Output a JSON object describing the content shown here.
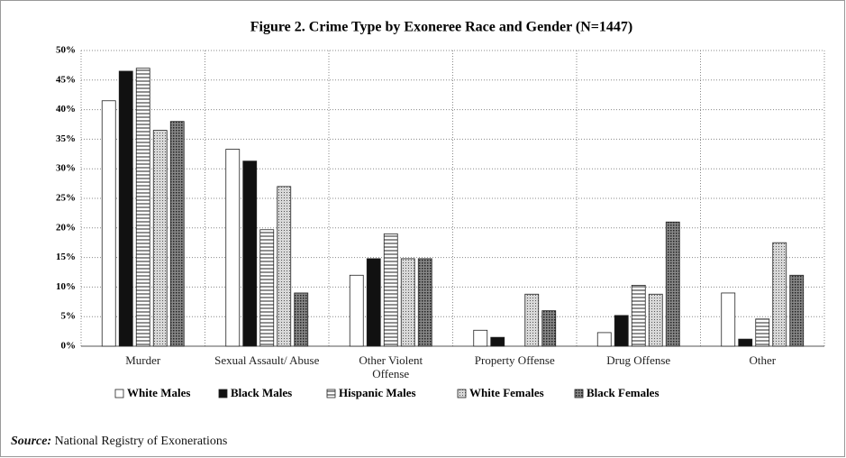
{
  "chart_data": {
    "type": "bar",
    "title": "Figure 2. Crime Type by Exoneree Race and Gender (N=1447)",
    "categories": [
      "Murder",
      "Sexual Assault/ Abuse",
      "Other Violent Offense",
      "Property Offense",
      "Drug Offense",
      "Other"
    ],
    "series": [
      {
        "name": "White Males",
        "color": "#ffffff",
        "pattern": "solid",
        "values": [
          41.5,
          33.3,
          12,
          2.7,
          2.3,
          9
        ]
      },
      {
        "name": "Black Males",
        "color": "#111111",
        "pattern": "solid",
        "values": [
          46.5,
          31.3,
          14.8,
          1.5,
          5.2,
          1.2
        ]
      },
      {
        "name": "Hispanic Males",
        "color": "#ffffff",
        "pattern": "horizontal",
        "values": [
          47,
          19.7,
          19,
          0,
          10.3,
          4.6
        ]
      },
      {
        "name": "White Females",
        "color": "#bdbdbd",
        "pattern": "dotted",
        "values": [
          36.5,
          27,
          14.8,
          8.8,
          8.8,
          17.5
        ]
      },
      {
        "name": "Black Females",
        "color": "#6a6a6a",
        "pattern": "dotted",
        "values": [
          38,
          9,
          14.8,
          6,
          21,
          12
        ]
      }
    ],
    "ylim": [
      0,
      50
    ],
    "yticks": [
      {
        "value": 0,
        "label": "0%"
      },
      {
        "value": 5,
        "label": "5%"
      },
      {
        "value": 10,
        "label": "10%"
      },
      {
        "value": 15,
        "label": "15%"
      },
      {
        "value": 20,
        "label": "20%"
      },
      {
        "value": 25,
        "label": "25%"
      },
      {
        "value": 30,
        "label": "30%"
      },
      {
        "value": 35,
        "label": "35%"
      },
      {
        "value": 40,
        "label": "40%"
      },
      {
        "value": 45,
        "label": "45%"
      },
      {
        "value": 50,
        "label": "50%"
      }
    ],
    "grid": true,
    "legend": "bottom",
    "source": {
      "label": "Source:",
      "text": "National Registry of Exonerations"
    }
  }
}
